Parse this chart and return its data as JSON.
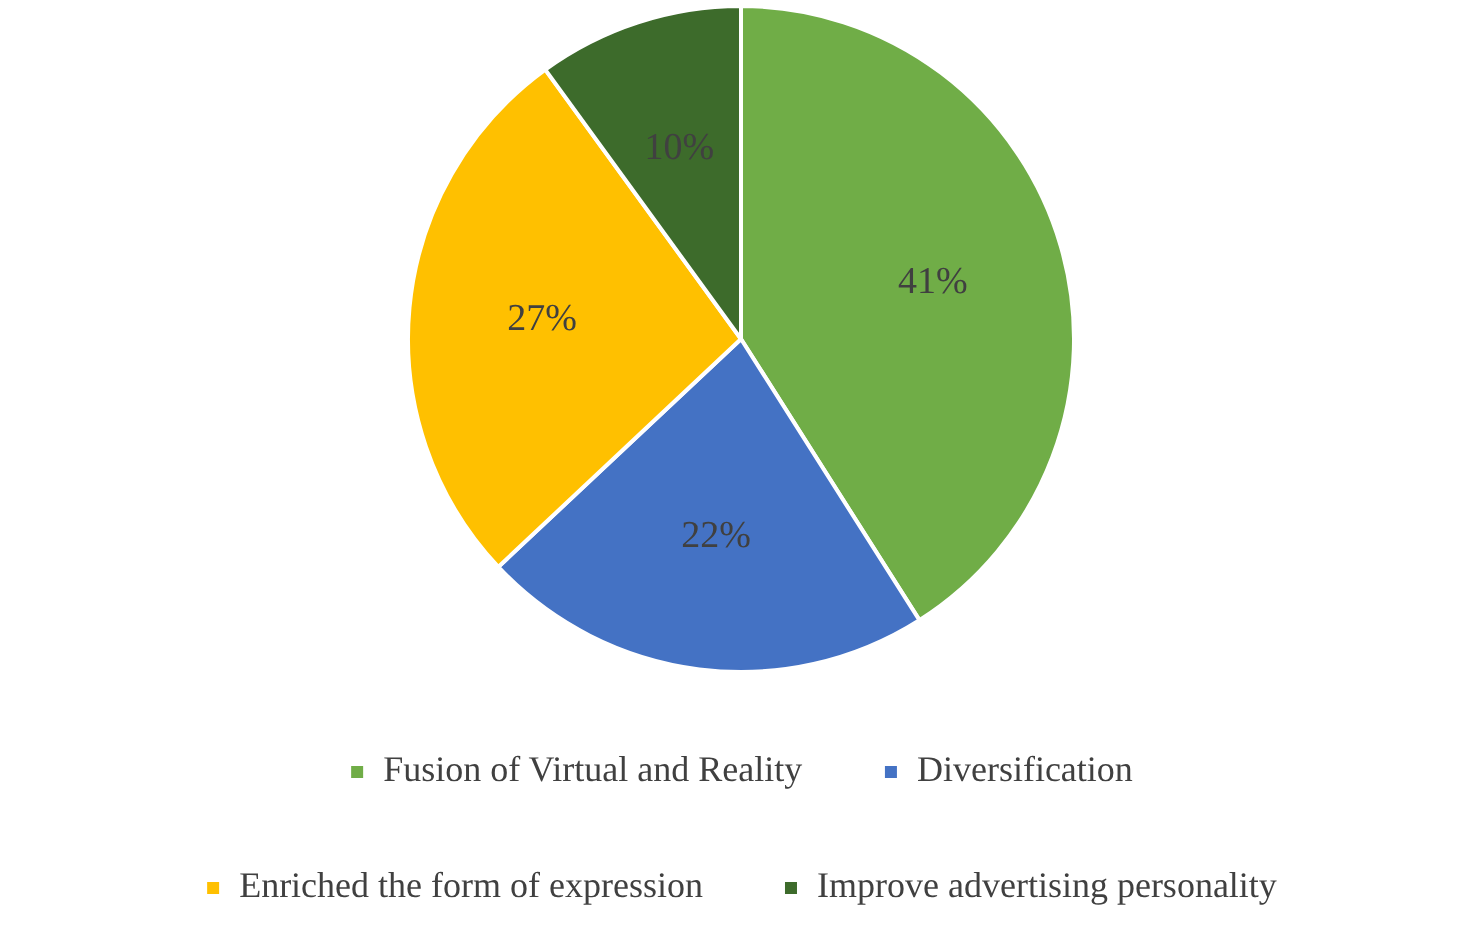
{
  "chart_data": {
    "type": "pie",
    "categories": [
      "Fusion of Virtual and Reality",
      "Diversification",
      "Enriched the form of expression",
      "Improve advertising personality"
    ],
    "values": [
      41,
      22,
      27,
      10
    ],
    "colors": [
      "#70ad47",
      "#4472c4",
      "#ffc000",
      "#3d6b2b"
    ],
    "value_labels": [
      "41%",
      "22%",
      "27%",
      "10%"
    ],
    "legend": "bottom"
  }
}
